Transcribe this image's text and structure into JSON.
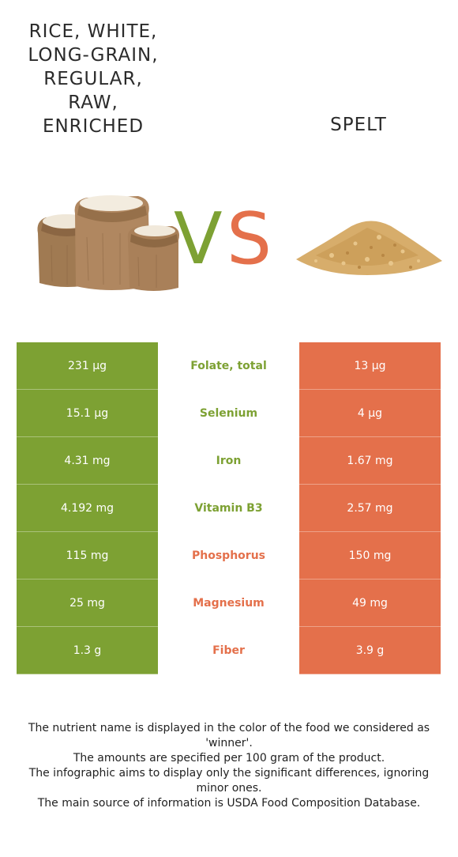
{
  "left_food": {
    "title": "RICE, WHITE,\nLONG-GRAIN,\nREGULAR,\nRAW,\nENRICHED",
    "color": "#7da133",
    "image_icon": "rice-sacks-icon"
  },
  "right_food": {
    "title": "SPELT",
    "color": "#e4704b",
    "image_icon": "spelt-grain-pile-icon"
  },
  "vs": {
    "v": "V",
    "s": "S"
  },
  "rows": [
    {
      "nutrient": "Folate, total",
      "left": "231 µg",
      "right": "13 µg",
      "winner": "left"
    },
    {
      "nutrient": "Selenium",
      "left": "15.1 µg",
      "right": "4 µg",
      "winner": "left"
    },
    {
      "nutrient": "Iron",
      "left": "4.31 mg",
      "right": "1.67 mg",
      "winner": "left"
    },
    {
      "nutrient": "Vitamin B3",
      "left": "4.192 mg",
      "right": "2.57 mg",
      "winner": "left"
    },
    {
      "nutrient": "Phosphorus",
      "left": "115 mg",
      "right": "150 mg",
      "winner": "right"
    },
    {
      "nutrient": "Magnesium",
      "left": "25 mg",
      "right": "49 mg",
      "winner": "right"
    },
    {
      "nutrient": "Fiber",
      "left": "1.3 g",
      "right": "3.9 g",
      "winner": "right"
    }
  ],
  "footnotes": [
    "The nutrient name is displayed in the color of the food we considered as 'winner'.",
    "The amounts are specified per 100 gram of the product.",
    "The infographic aims to display only the significant differences, ignoring minor ones.",
    "The main source of information is USDA Food Composition Database."
  ]
}
